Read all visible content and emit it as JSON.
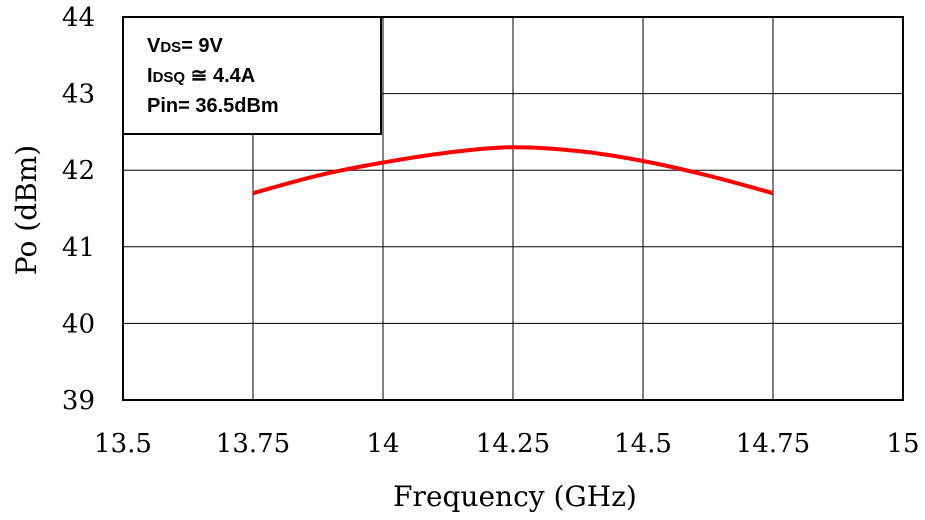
{
  "chart_data": {
    "type": "line",
    "title": "",
    "xlabel": "Frequency (GHz)",
    "ylabel": "Po (dBm)",
    "xlim": [
      13.5,
      15
    ],
    "ylim": [
      39,
      44
    ],
    "xticks": [
      "13.5",
      "13.75",
      "14",
      "14.25",
      "14.5",
      "14.75",
      "15"
    ],
    "yticks": [
      "39",
      "40",
      "41",
      "42",
      "43",
      "44"
    ],
    "grid": true,
    "series": [
      {
        "color": "#ff0000",
        "x": [
          13.75,
          13.875,
          14.0,
          14.125,
          14.25,
          14.375,
          14.5,
          14.625,
          14.75
        ],
        "y": [
          41.7,
          41.93,
          42.1,
          42.23,
          42.3,
          42.25,
          42.12,
          41.93,
          41.7
        ]
      }
    ],
    "annotation": {
      "lines": [
        {
          "main": "V",
          "sub": "DS",
          "rest": "= 9V"
        },
        {
          "main": "I",
          "sub": "DSQ",
          "rest": " ≅ 4.4A"
        },
        {
          "main": "Pin= 36.5dBm",
          "sub": "",
          "rest": ""
        }
      ]
    }
  }
}
